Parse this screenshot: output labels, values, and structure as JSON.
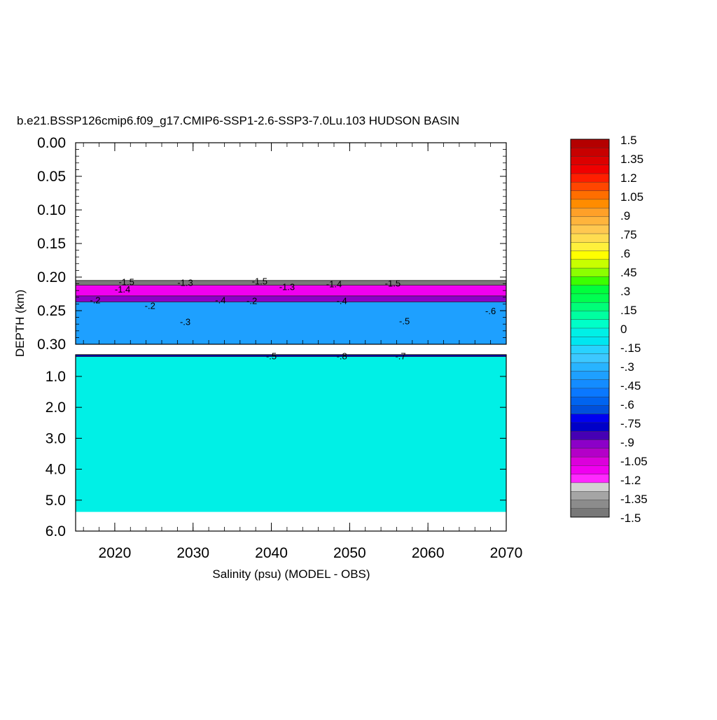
{
  "chart_data": {
    "type": "heatmap",
    "title": "b.e21.BSSP126cmip6.f09_g17.CMIP6-SSP1-2.6-SSP3-7.0Lu.103 HUDSON BASIN",
    "xlabel": "Salinity (psu) (MODEL - OBS)",
    "ylabel": "DEPTH (km)",
    "xlim": [
      2015,
      2070
    ],
    "x_ticks": [
      "2020",
      "2030",
      "2040",
      "2050",
      "2060",
      "2070"
    ],
    "x_tick_values": [
      2020,
      2030,
      2040,
      2050,
      2060,
      2070
    ],
    "upper_panel": {
      "ylim": [
        0.0,
        0.3
      ],
      "y_ticks": [
        "0.00",
        "0.05",
        "0.10",
        "0.15",
        "0.20",
        "0.25",
        "0.30"
      ],
      "y_tick_values": [
        0.0,
        0.05,
        0.1,
        0.15,
        0.2,
        0.25,
        0.3
      ],
      "layers": [
        {
          "top": 0.205,
          "bottom": 0.212,
          "value": -1.5
        },
        {
          "top": 0.212,
          "bottom": 0.228,
          "value": -1.15
        },
        {
          "top": 0.228,
          "bottom": 0.237,
          "value": -0.9
        },
        {
          "top": 0.237,
          "bottom": 0.3,
          "value": -0.35
        }
      ],
      "contour_labels": [
        {
          "text": "-1.5",
          "x": 2021.5,
          "y": 0.208
        },
        {
          "text": "-1.3",
          "x": 2029.0,
          "y": 0.209
        },
        {
          "text": "-1.5",
          "x": 2038.5,
          "y": 0.207
        },
        {
          "text": "-1.4",
          "x": 2048.0,
          "y": 0.211
        },
        {
          "text": "-1.5",
          "x": 2055.5,
          "y": 0.21
        },
        {
          "text": "-1.3",
          "x": 2042.0,
          "y": 0.215
        },
        {
          "text": "-1.4",
          "x": 2021.0,
          "y": 0.219
        },
        {
          "text": "-.2",
          "x": 2017.5,
          "y": 0.235
        },
        {
          "text": "-.2",
          "x": 2024.5,
          "y": 0.243
        },
        {
          "text": "-.2",
          "x": 2037.5,
          "y": 0.236
        },
        {
          "text": "-.4",
          "x": 2033.5,
          "y": 0.235
        },
        {
          "text": "-.4",
          "x": 2049.0,
          "y": 0.236
        },
        {
          "text": "-.3",
          "x": 2029.0,
          "y": 0.267
        },
        {
          "text": "-.5",
          "x": 2057.0,
          "y": 0.266
        },
        {
          "text": "-.6",
          "x": 2068.0,
          "y": 0.251
        }
      ]
    },
    "lower_panel": {
      "ylim": [
        0.3,
        6.0
      ],
      "y_ticks": [
        "1.0",
        "2.0",
        "3.0",
        "4.0",
        "5.0",
        "6.0"
      ],
      "y_tick_values": [
        1,
        2,
        3,
        4,
        5,
        6
      ],
      "layers": [
        {
          "top": 0.3,
          "bottom": 0.36,
          "value": -0.8
        },
        {
          "top": 0.36,
          "bottom": 5.38,
          "value": 0.0
        }
      ],
      "contour_labels": [
        {
          "text": "-.8",
          "x": 2049.0,
          "y": 0.36
        },
        {
          "text": "-.7",
          "x": 2056.5,
          "y": 0.36
        },
        {
          "text": "-.5",
          "x": 2040.0,
          "y": 0.36
        }
      ]
    },
    "colorbar": {
      "min": -1.5,
      "max": 1.5,
      "labels": [
        "1.5",
        "1.35",
        "1.2",
        "1.05",
        ".9",
        ".75",
        ".6",
        ".45",
        ".3",
        ".15",
        "0",
        "-.15",
        "-.3",
        "-.45",
        "-.6",
        "-.75",
        "-.9",
        "-1.05",
        "-1.2",
        "-1.35",
        "-1.5"
      ],
      "colors": [
        "#b40000",
        "#c80000",
        "#dc0000",
        "#f00000",
        "#ff1e00",
        "#ff4600",
        "#ff6e00",
        "#ff8c00",
        "#ffa028",
        "#ffb43c",
        "#ffc850",
        "#ffdc50",
        "#fff03c",
        "#ffff00",
        "#c8ff00",
        "#8cff00",
        "#3cff00",
        "#00ff3c",
        "#00ff50",
        "#00ff78",
        "#00ffa0",
        "#00ffc8",
        "#00f0e6",
        "#00e6f0",
        "#28d2ff",
        "#3cc8ff",
        "#28b4ff",
        "#1ea0ff",
        "#148cff",
        "#0a78ff",
        "#0064f0",
        "#0050dc",
        "#0000f0",
        "#0000c8",
        "#4600b4",
        "#8c00c8",
        "#b400c8",
        "#dc00dc",
        "#f000f0",
        "#ff28ff",
        "#d2d2d2",
        "#a5a5a5",
        "#8c8c8c",
        "#787878"
      ]
    }
  }
}
